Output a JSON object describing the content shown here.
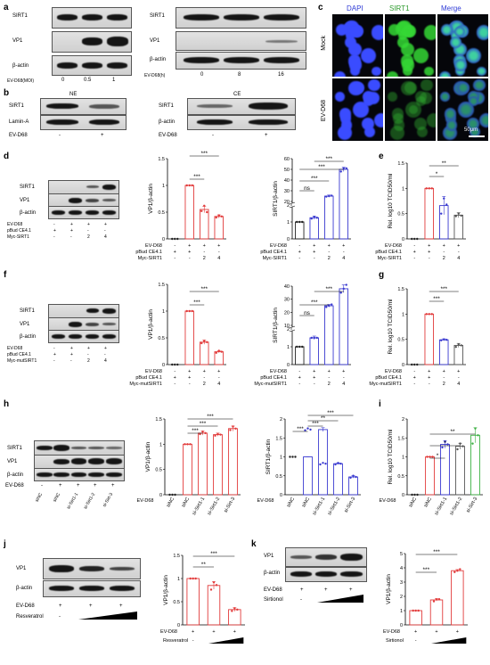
{
  "panel_labels": {
    "a": "a",
    "b": "b",
    "c": "c",
    "d": "d",
    "e": "e",
    "f": "f",
    "g": "g",
    "h": "h",
    "i": "i",
    "j": "j",
    "k": "k"
  },
  "colors": {
    "control": "#222222",
    "ev": "#e23b3b",
    "sirt": "#3a3ad0",
    "green": "#3cb043",
    "microscopy_bg": "#05060a"
  },
  "markers": {
    "sirt1": "SIRT1",
    "vp1": "VP1",
    "bactin": "β-actin",
    "lamina": "Lamin-A",
    "ev": "EV-D68",
    "pbud": "pBud CE4.1",
    "myc": "Myc-SIRT1",
    "mycmut": "Myc-mutSIRT1",
    "resv": "Resveratrol",
    "sirt": "Sirtionol",
    "moi": "EV-D68(MOI)",
    "hour": "EV-D68(h)"
  },
  "a": {
    "moi_vals": [
      "0",
      "0.5",
      "1"
    ],
    "h_vals": [
      "0",
      "8",
      "16"
    ]
  },
  "b": {
    "ne": "NE",
    "ce": "CE"
  },
  "c": {
    "cols": [
      "DAPI",
      "SIRT1",
      "Merge"
    ],
    "rows": [
      "Mock",
      "EV-D68"
    ],
    "scale": "50μm"
  },
  "signs": {
    "minus": "-",
    "plus": "+",
    "two": "2",
    "four": "4"
  },
  "sig": {
    "s3": "***",
    "s2": "**",
    "s1": "*",
    "ns": "ns"
  },
  "h_lanes": [
    "siNC",
    "siNC",
    "si-Sirt1-1",
    "si-Sirt1-2",
    "si-Sirt-3"
  ],
  "chart_data": [
    {
      "type": "bar",
      "ylabel": "VP1/β-actin",
      "ylim": [
        0,
        1.5
      ],
      "categories": [
        "1",
        "2",
        "3",
        "4"
      ],
      "values": [
        0.0,
        1.0,
        0.55,
        0.42
      ]
    },
    {
      "type": "bar",
      "ylabel": "SIRT1/β-actin",
      "y_broken": true,
      "ylim": [
        0,
        60
      ],
      "categories": [
        "1",
        "2",
        "3",
        "4"
      ],
      "values": [
        1.0,
        1.25,
        25,
        50
      ]
    },
    {
      "type": "bar",
      "ylabel": "Rel. log10 TCID50/ml",
      "ylim": [
        0,
        1.5
      ],
      "categories": [
        "1",
        "2",
        "3",
        "4"
      ],
      "values": [
        0.0,
        1.0,
        0.66,
        0.47
      ]
    },
    {
      "type": "bar",
      "ylabel": "VP1/β-actin",
      "ylim": [
        0,
        1.5
      ],
      "categories": [
        "1",
        "2",
        "3",
        "4"
      ],
      "values": [
        0.0,
        1.0,
        0.42,
        0.24
      ]
    },
    {
      "type": "bar",
      "ylabel": "SIRT1/β-actin",
      "y_broken": true,
      "ylim": [
        0,
        40
      ],
      "categories": [
        "1",
        "2",
        "3",
        "4"
      ],
      "values": [
        1.0,
        1.5,
        25,
        38
      ]
    },
    {
      "type": "bar",
      "ylabel": "Rel. log10 TCID50/ml",
      "ylim": [
        0,
        1.5
      ],
      "categories": [
        "1",
        "2",
        "3",
        "4"
      ],
      "values": [
        0.0,
        1.0,
        0.49,
        0.38
      ]
    },
    {
      "type": "bar",
      "ylabel": "VP1/β-actin",
      "ylim": [
        0,
        1.5
      ],
      "categories": [
        "siNC",
        "siNC",
        "si-Sirt1-1",
        "si-Sirt1-2",
        "si-Sirt-3"
      ],
      "values": [
        0.0,
        1.0,
        1.22,
        1.19,
        1.31
      ]
    },
    {
      "type": "bar",
      "ylabel": "SIRT1/β-actin",
      "ylim": [
        0,
        2.0
      ],
      "categories": [
        "siNC",
        "siNC",
        "si-Sirt1-1",
        "si-Sirt1-2",
        "si-Sirt-3"
      ],
      "values": [
        0.0,
        1.0,
        1.72,
        0.82,
        0.47
      ]
    },
    {
      "type": "bar",
      "ylabel": "Rel. log10 TCID50/ml",
      "ylim": [
        0,
        2.0
      ],
      "categories": [
        "siNC",
        "siNC",
        "si-Sirt1-1",
        "si-Sirt1-2",
        "si-Sirt-3"
      ],
      "values": [
        0.0,
        1.0,
        1.33,
        1.28,
        1.57
      ]
    },
    {
      "type": "bar",
      "ylabel": "VP1/β-actin",
      "ylim": [
        0,
        1.5
      ],
      "categories": [
        "1",
        "2",
        "3"
      ],
      "values": [
        1.0,
        0.85,
        0.33
      ]
    },
    {
      "type": "bar",
      "ylabel": "VP1/β-actin",
      "ylim": [
        0,
        5
      ],
      "categories": [
        "1",
        "2",
        "3"
      ],
      "values": [
        1.0,
        1.75,
        3.8
      ]
    }
  ]
}
